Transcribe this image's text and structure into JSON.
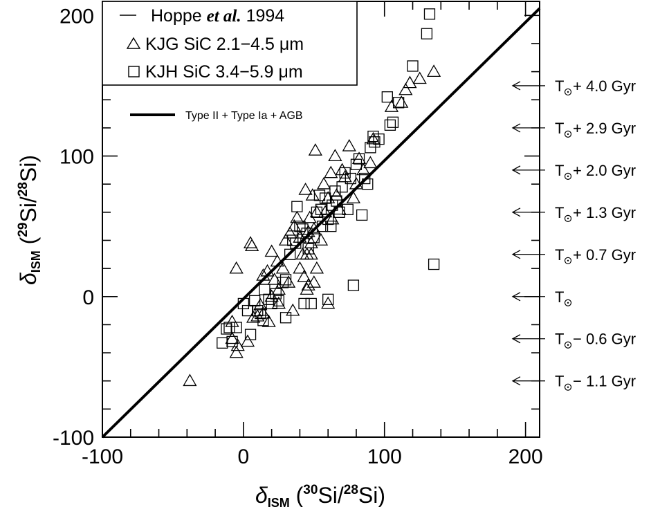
{
  "chart_data": {
    "type": "scatter",
    "xlim": [
      -100,
      210
    ],
    "ylim": [
      -100,
      210
    ],
    "grid": false,
    "legend_position": "top-left",
    "x_tick_labels": [
      "-100",
      "0",
      "100",
      "200"
    ],
    "y_tick_labels": [
      "-100",
      "0",
      "100",
      "200"
    ],
    "xlabel": {
      "delta": "δ",
      "sub": "ISM",
      "open": " (",
      "sup1": "30",
      "mid": "Si/",
      "sup2": "28",
      "end": "Si)"
    },
    "ylabel": {
      "delta": "δ",
      "sub": "ISM",
      "open": " (",
      "sup1": "29",
      "mid": "Si/",
      "sup2": "28",
      "end": "Si)"
    },
    "legend": {
      "header_text": "Hoppe",
      "header_italic": "et al.",
      "header_year": "1994",
      "kjg_label": "KJG  SiC  2.1−4.5  μm",
      "kjh_label": "KJH  SiC  3.4−5.9  μm",
      "line_label": "Type II + Type Ia + AGB"
    },
    "line": {
      "name": "Type II + Type Ia + AGB",
      "points": [
        [
          -100,
          -100
        ],
        [
          210,
          205
        ]
      ]
    },
    "arrows": [
      {
        "y": 150,
        "prefix": "T",
        "text": "  +  4.0  Gyr"
      },
      {
        "y": 120,
        "prefix": "T",
        "text": "  +  2.9  Gyr"
      },
      {
        "y": 90,
        "prefix": "T",
        "text": "  +  2.0  Gyr"
      },
      {
        "y": 60,
        "prefix": "T",
        "text": "  +  1.3  Gyr"
      },
      {
        "y": 30,
        "prefix": "T",
        "text": "  +  0.7  Gyr"
      },
      {
        "y": 0,
        "prefix": "T",
        "text": ""
      },
      {
        "y": -30,
        "prefix": "T",
        "text": "  −  0.6  Gyr"
      },
      {
        "y": -60,
        "prefix": "T",
        "text": "  −  1.1  Gyr"
      }
    ],
    "series": [
      {
        "name": "KJG  SiC  2.1−4.5  μm",
        "marker": "triangle",
        "points": [
          [
            -38,
            -60
          ],
          [
            -5,
            -40
          ],
          [
            -4,
            -35
          ],
          [
            -8,
            -30
          ],
          [
            -8,
            -18
          ],
          [
            3,
            -32
          ],
          [
            -5,
            20
          ],
          [
            5,
            38
          ],
          [
            6,
            36
          ],
          [
            7,
            -15
          ],
          [
            10,
            -14
          ],
          [
            12,
            -6
          ],
          [
            14,
            -12
          ],
          [
            14,
            15
          ],
          [
            17,
            18
          ],
          [
            18,
            -18
          ],
          [
            20,
            0
          ],
          [
            20,
            32
          ],
          [
            22,
            12
          ],
          [
            24,
            25
          ],
          [
            25,
            5
          ],
          [
            25,
            -5
          ],
          [
            28,
            20
          ],
          [
            30,
            40
          ],
          [
            32,
            10
          ],
          [
            33,
            45
          ],
          [
            35,
            -10
          ],
          [
            36,
            50
          ],
          [
            38,
            56
          ],
          [
            40,
            20
          ],
          [
            40,
            42
          ],
          [
            42,
            30
          ],
          [
            43,
            14
          ],
          [
            44,
            76
          ],
          [
            45,
            5
          ],
          [
            45,
            30
          ],
          [
            46,
            8
          ],
          [
            46,
            46
          ],
          [
            47,
            56
          ],
          [
            48,
            30
          ],
          [
            48,
            38
          ],
          [
            49,
            72
          ],
          [
            50,
            10
          ],
          [
            50,
            48
          ],
          [
            51,
            104
          ],
          [
            52,
            20
          ],
          [
            52,
            60
          ],
          [
            55,
            40
          ],
          [
            57,
            80
          ],
          [
            58,
            60
          ],
          [
            60,
            -5
          ],
          [
            60,
            70
          ],
          [
            62,
            88
          ],
          [
            63,
            55
          ],
          [
            65,
            100
          ],
          [
            66,
            72
          ],
          [
            68,
            62
          ],
          [
            70,
            90
          ],
          [
            72,
            85
          ],
          [
            75,
            107
          ],
          [
            78,
            70
          ],
          [
            80,
            80
          ],
          [
            82,
            98
          ],
          [
            85,
            90
          ],
          [
            90,
            95
          ],
          [
            92,
            112
          ],
          [
            105,
            135
          ],
          [
            112,
            138
          ],
          [
            115,
            147
          ],
          [
            118,
            152
          ],
          [
            125,
            155
          ],
          [
            135,
            160
          ]
        ]
      },
      {
        "name": "KJH  SiC  3.4−5.9  μm",
        "marker": "square",
        "points": [
          [
            -15,
            -33
          ],
          [
            -12,
            -23
          ],
          [
            -10,
            -22
          ],
          [
            -5,
            -22
          ],
          [
            -8,
            -32
          ],
          [
            0,
            -5
          ],
          [
            3,
            -10
          ],
          [
            5,
            -27
          ],
          [
            8,
            -3
          ],
          [
            10,
            -10
          ],
          [
            12,
            -12
          ],
          [
            14,
            -17
          ],
          [
            15,
            5
          ],
          [
            18,
            -2
          ],
          [
            20,
            -5
          ],
          [
            23,
            2
          ],
          [
            25,
            -3
          ],
          [
            28,
            10
          ],
          [
            30,
            12
          ],
          [
            30,
            -15
          ],
          [
            33,
            30
          ],
          [
            35,
            40
          ],
          [
            37,
            38
          ],
          [
            38,
            64
          ],
          [
            40,
            50
          ],
          [
            42,
            48
          ],
          [
            43,
            -5
          ],
          [
            45,
            45
          ],
          [
            46,
            34
          ],
          [
            48,
            -5
          ],
          [
            50,
            42
          ],
          [
            52,
            60
          ],
          [
            54,
            72
          ],
          [
            55,
            62
          ],
          [
            56,
            50
          ],
          [
            58,
            70
          ],
          [
            60,
            -2
          ],
          [
            60,
            55
          ],
          [
            62,
            50
          ],
          [
            63,
            65
          ],
          [
            65,
            75
          ],
          [
            66,
            68
          ],
          [
            68,
            60
          ],
          [
            70,
            78
          ],
          [
            72,
            88
          ],
          [
            74,
            62
          ],
          [
            76,
            84
          ],
          [
            78,
            8
          ],
          [
            80,
            94
          ],
          [
            82,
            98
          ],
          [
            84,
            58
          ],
          [
            86,
            84
          ],
          [
            88,
            80
          ],
          [
            90,
            106
          ],
          [
            92,
            114
          ],
          [
            93,
            110
          ],
          [
            96,
            112
          ],
          [
            102,
            142
          ],
          [
            104,
            122
          ],
          [
            106,
            124
          ],
          [
            110,
            138
          ],
          [
            120,
            164
          ],
          [
            130,
            187
          ],
          [
            132,
            201
          ],
          [
            135,
            23
          ]
        ]
      }
    ]
  }
}
